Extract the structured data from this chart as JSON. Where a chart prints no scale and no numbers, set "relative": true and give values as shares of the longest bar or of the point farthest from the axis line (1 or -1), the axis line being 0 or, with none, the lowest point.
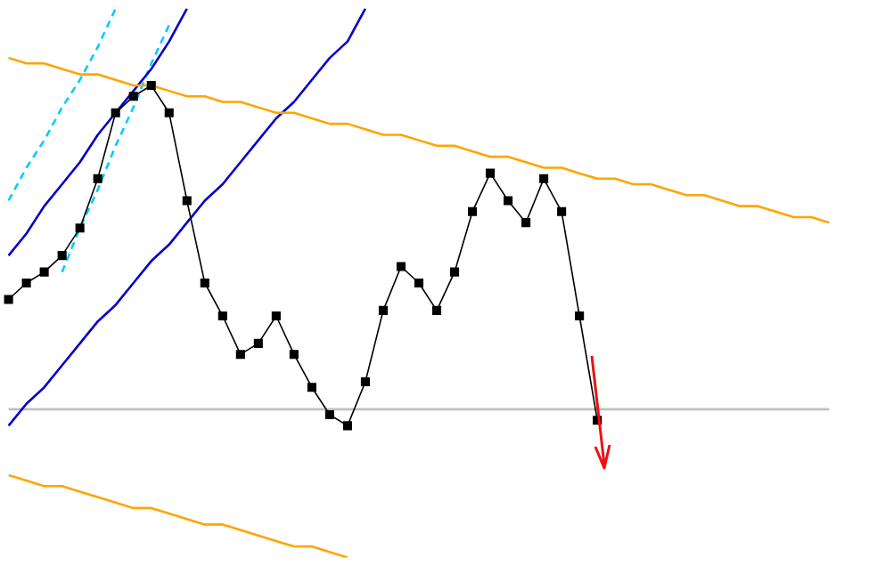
{
  "chart_data": {
    "type": "line",
    "relative": true,
    "legend": false,
    "marker": "square",
    "categories": [
      null,
      null,
      null,
      null,
      null,
      null,
      null,
      null,
      null,
      null,
      null,
      null,
      null,
      null,
      null,
      null,
      null,
      null,
      null,
      null,
      null,
      null,
      null,
      null,
      null,
      null,
      null,
      null,
      null,
      null,
      null,
      null,
      null,
      null,
      null,
      null,
      null,
      null,
      null,
      null,
      null,
      null,
      null,
      null,
      null,
      null,
      null
    ],
    "series": [
      {
        "color": "#000000",
        "values": [
          0.47,
          0.5,
          0.52,
          0.55,
          0.6,
          0.69,
          0.81,
          0.84,
          0.86,
          0.81,
          0.65,
          0.5,
          0.44,
          0.37,
          0.39,
          0.44,
          0.37,
          0.31,
          0.26,
          0.24,
          0.32,
          0.45,
          0.53,
          0.5,
          0.45,
          0.52,
          0.63,
          0.7,
          0.65,
          0.61,
          0.69,
          0.63,
          0.44,
          0.25,
          null,
          null,
          null,
          null,
          null,
          null,
          null,
          null,
          null,
          null,
          null,
          null,
          null
        ]
      },
      {
        "color": "#ffa500",
        "marker": "none",
        "values": [
          0.91,
          0.9,
          0.9,
          0.89,
          0.88,
          0.88,
          0.87,
          0.86,
          0.86,
          0.85,
          0.84,
          0.84,
          0.83,
          0.83,
          0.82,
          0.81,
          0.81,
          0.8,
          0.79,
          0.79,
          0.78,
          0.77,
          0.77,
          0.76,
          0.75,
          0.75,
          0.74,
          0.73,
          0.73,
          0.72,
          0.71,
          0.71,
          0.7,
          0.69,
          0.69,
          0.68,
          0.68,
          0.67,
          0.66,
          0.66,
          0.65,
          0.64,
          0.64,
          0.63,
          0.62,
          0.62,
          0.61
        ]
      },
      {
        "color": "#ffa500",
        "marker": "none",
        "values": [
          0.15,
          0.14,
          0.13,
          0.13,
          0.12,
          0.11,
          0.1,
          0.09,
          0.09,
          0.08,
          0.07,
          0.06,
          0.06,
          0.05,
          0.04,
          0.03,
          0.02,
          0.02,
          0.01,
          0,
          null,
          null,
          null,
          null,
          null,
          null,
          null,
          null,
          null,
          null,
          null,
          null,
          null,
          null,
          null,
          null,
          null,
          null,
          null,
          null,
          null,
          null,
          null,
          null,
          null,
          null,
          null
        ]
      },
      {
        "color": "#0000cc",
        "marker": "none",
        "values": [
          0.55,
          0.59,
          0.64,
          0.68,
          0.72,
          0.77,
          0.81,
          0.85,
          0.89,
          0.94,
          1,
          null,
          null,
          null,
          null,
          null,
          null,
          null,
          null,
          null,
          null,
          null,
          null,
          null,
          null,
          null,
          null,
          null,
          null,
          null,
          null,
          null,
          null,
          null,
          null,
          null,
          null,
          null,
          null,
          null,
          null,
          null,
          null,
          null,
          null,
          null,
          null
        ]
      },
      {
        "color": "#0000cc",
        "marker": "none",
        "values": [
          0.24,
          0.28,
          0.31,
          0.35,
          0.39,
          0.43,
          0.46,
          0.5,
          0.54,
          0.57,
          0.61,
          0.65,
          0.68,
          0.72,
          0.76,
          0.8,
          0.83,
          0.87,
          0.91,
          0.94,
          1,
          null,
          null,
          null,
          null,
          null,
          null,
          null,
          null,
          null,
          null,
          null,
          null,
          null,
          null,
          null,
          null,
          null,
          null,
          null,
          null,
          null,
          null,
          null,
          null,
          null,
          null
        ]
      },
      {
        "color": "#00ccff",
        "marker": "none",
        "line_style": "dashed",
        "values": [
          0.65,
          0.71,
          0.76,
          0.82,
          0.87,
          0.93,
          1,
          null,
          null,
          null,
          null,
          null,
          null,
          null,
          null,
          null,
          null,
          null,
          null,
          null,
          null,
          null,
          null,
          null,
          null,
          null,
          null,
          null,
          null,
          null,
          null,
          null,
          null,
          null,
          null,
          null,
          null,
          null,
          null,
          null,
          null,
          null,
          null,
          null,
          null,
          null,
          null
        ]
      },
      {
        "color": "#00ccff",
        "marker": "none",
        "line_style": "dashed",
        "values": [
          null,
          null,
          null,
          0.52,
          0.6,
          0.67,
          0.75,
          0.82,
          0.9,
          0.97,
          null,
          null,
          null,
          null,
          null,
          null,
          null,
          null,
          null,
          null,
          null,
          null,
          null,
          null,
          null,
          null,
          null,
          null,
          null,
          null,
          null,
          null,
          null,
          null,
          null,
          null,
          null,
          null,
          null,
          null,
          null,
          null,
          null,
          null,
          null,
          null,
          null
        ]
      },
      {
        "color": "#c0c0c0",
        "marker": "none",
        "values": [
          0.27,
          0.27,
          0.27,
          0.27,
          0.27,
          0.27,
          0.27,
          0.27,
          0.27,
          0.27,
          0.27,
          0.27,
          0.27,
          0.27,
          0.27,
          0.27,
          0.27,
          0.27,
          0.27,
          0.27,
          0.27,
          0.27,
          0.27,
          0.27,
          0.27,
          0.27,
          0.27,
          0.27,
          0.27,
          0.27,
          0.27,
          0.27,
          0.27,
          0.27,
          0.27,
          0.27,
          0.27,
          0.27,
          0.27,
          0.27,
          0.27,
          0.27,
          0.27,
          0.27,
          0.27,
          0.27,
          0.27
        ]
      }
    ]
  }
}
